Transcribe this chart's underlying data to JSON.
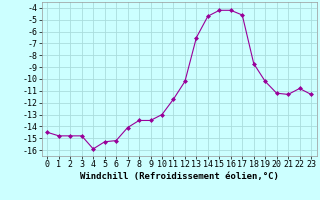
{
  "x": [
    0,
    1,
    2,
    3,
    4,
    5,
    6,
    7,
    8,
    9,
    10,
    11,
    12,
    13,
    14,
    15,
    16,
    17,
    18,
    19,
    20,
    21,
    22,
    23
  ],
  "y": [
    -14.5,
    -14.8,
    -14.8,
    -14.8,
    -15.9,
    -15.3,
    -15.2,
    -14.1,
    -13.5,
    -13.5,
    -13.0,
    -11.7,
    -10.2,
    -6.5,
    -4.7,
    -4.2,
    -4.2,
    -4.6,
    -8.7,
    -10.2,
    -11.2,
    -11.3,
    -10.8,
    -11.3
  ],
  "line_color": "#990099",
  "marker": "D",
  "markersize": 2.0,
  "linewidth": 0.8,
  "bg_color": "#ccffff",
  "grid_color": "#aadddd",
  "xlabel": "Windchill (Refroidissement éolien,°C)",
  "xlabel_fontsize": 6.5,
  "tick_fontsize": 6.0,
  "ylim": [
    -16.5,
    -3.5
  ],
  "yticks": [
    -16,
    -15,
    -14,
    -13,
    -12,
    -11,
    -10,
    -9,
    -8,
    -7,
    -6,
    -5,
    -4
  ],
  "xlim": [
    -0.5,
    23.5
  ],
  "xticks": [
    0,
    1,
    2,
    3,
    4,
    5,
    6,
    7,
    8,
    9,
    10,
    11,
    12,
    13,
    14,
    15,
    16,
    17,
    18,
    19,
    20,
    21,
    22,
    23
  ]
}
